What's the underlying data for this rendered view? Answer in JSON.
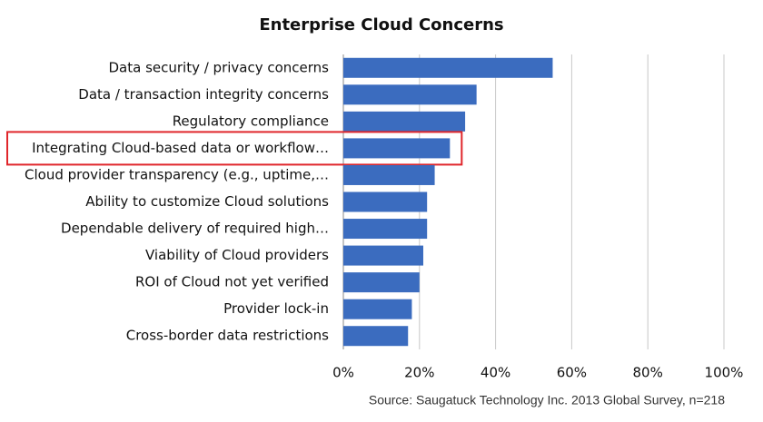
{
  "chart_data": {
    "type": "hbar",
    "title": "Enterprise Cloud Concerns",
    "categories": [
      "Data security / privacy concerns",
      "Data / transaction integrity concerns",
      "Regulatory compliance",
      "Integrating Cloud-based data or workflow…",
      "Cloud provider transparency (e.g., uptime,…",
      "Ability to customize Cloud solutions",
      "Dependable delivery of required high…",
      "Viability of Cloud providers",
      "ROI of Cloud not yet verified",
      "Provider lock-in",
      "Cross-border data restrictions"
    ],
    "values": [
      55,
      35,
      32,
      28,
      24,
      22,
      22,
      21,
      20,
      18,
      17
    ],
    "color": "#3b6cbf",
    "xlim": [
      0,
      100
    ],
    "xticks": [
      {
        "value": 0,
        "label": "0%"
      },
      {
        "value": 20,
        "label": "20%"
      },
      {
        "value": 40,
        "label": "40%"
      },
      {
        "value": 60,
        "label": "60%"
      },
      {
        "value": 80,
        "label": "80%"
      },
      {
        "value": 100,
        "label": "100%"
      }
    ],
    "grid": true,
    "highlight_category": "Integrating Cloud-based data or workflow…",
    "highlight_color": "#e0262b",
    "source": "Source: Saugatuck Technology Inc. 2013 Global Survey, n=218"
  }
}
